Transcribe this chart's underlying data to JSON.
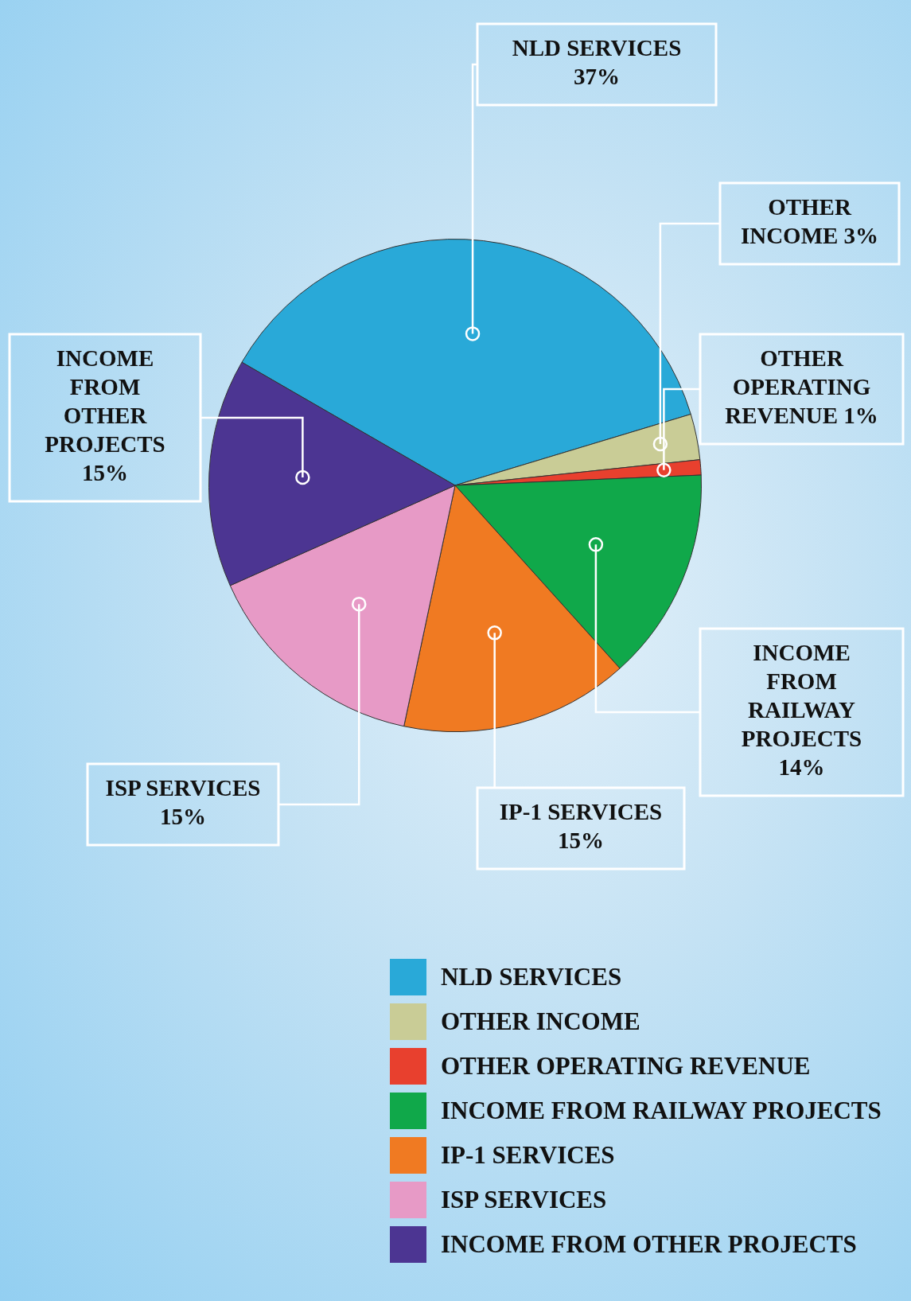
{
  "chart_data": {
    "type": "pie",
    "categories": [
      "NLD SERVICES",
      "OTHER INCOME",
      "OTHER OPERATING REVENUE",
      "INCOME FROM RAILWAY PROJECTS",
      "IP-1 SERVICES",
      "ISP SERVICES",
      "INCOME FROM OTHER PROJECTS"
    ],
    "values": [
      37,
      3,
      1,
      14,
      15,
      15,
      15
    ],
    "value_labels": [
      "37%",
      "3%",
      "1%",
      "14%",
      "15%",
      "15%",
      "15%"
    ],
    "colors": [
      "#29a9d8",
      "#c9cc96",
      "#e8402e",
      "#10a84a",
      "#f07a22",
      "#e79ac6",
      "#4c3592"
    ],
    "legend": "bottom right"
  }
}
